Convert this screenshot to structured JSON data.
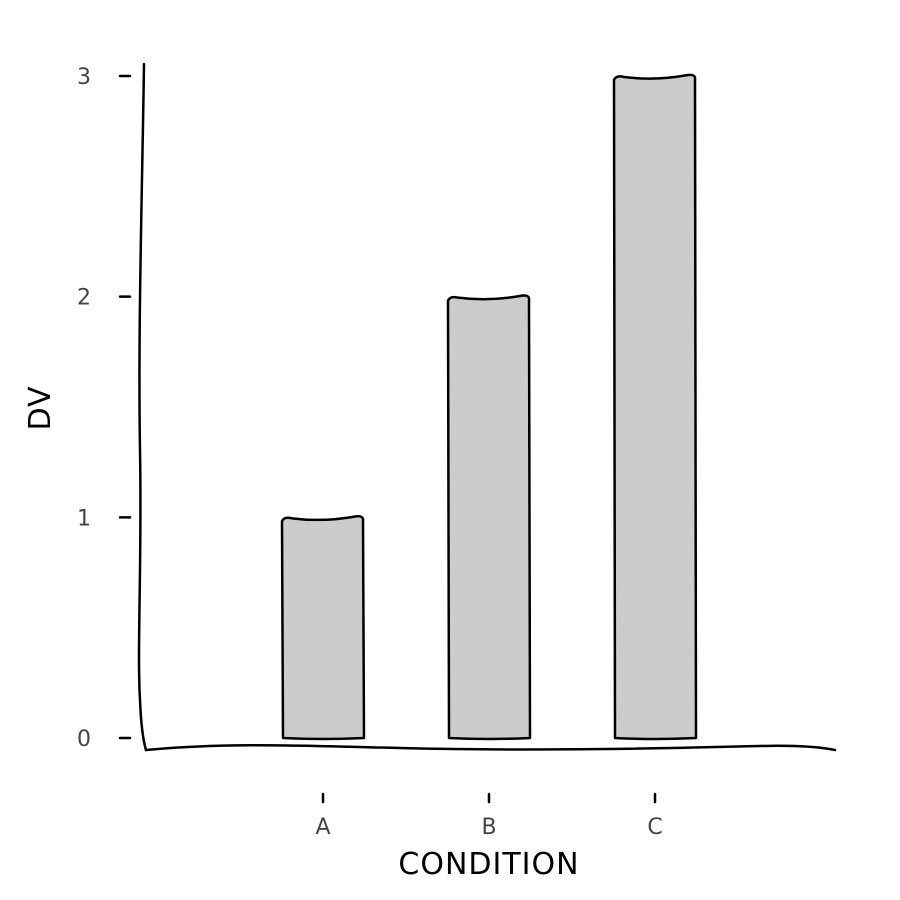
{
  "chart_data": {
    "type": "bar",
    "categories": [
      "A",
      "B",
      "C"
    ],
    "values": [
      1,
      2,
      3
    ],
    "title": "",
    "xlabel": "CONDITION",
    "ylabel": "DV",
    "ylim": [
      0,
      3
    ],
    "yticks": [
      "0",
      "1",
      "2",
      "3"
    ],
    "grid": false,
    "legend": "none",
    "bar_color": "#cccccc",
    "edge_color": "#000000"
  }
}
